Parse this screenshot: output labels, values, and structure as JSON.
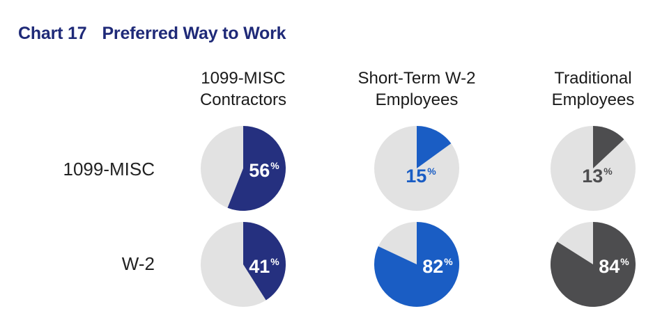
{
  "header": {
    "chart_number": "Chart 17",
    "chart_title": "Preferred Way to Work"
  },
  "colors": {
    "title": "#1f2a78",
    "remainder": "#e2e2e2"
  },
  "chart_data": {
    "type": "pie",
    "title": "Chart 17 Preferred Way to Work",
    "columns": [
      {
        "line1": "1099-MISC",
        "line2": "Contractors",
        "color": "#25307f"
      },
      {
        "line1": "Short-Term W-2",
        "line2": "Employees",
        "color": "#1a5dc4"
      },
      {
        "line1": "Traditional",
        "line2": "Employees",
        "color": "#4d4d4f"
      }
    ],
    "rows": [
      "1099-MISC",
      "W-2"
    ],
    "values": [
      [
        56,
        15,
        13
      ],
      [
        41,
        82,
        84
      ]
    ],
    "unit": "%"
  }
}
